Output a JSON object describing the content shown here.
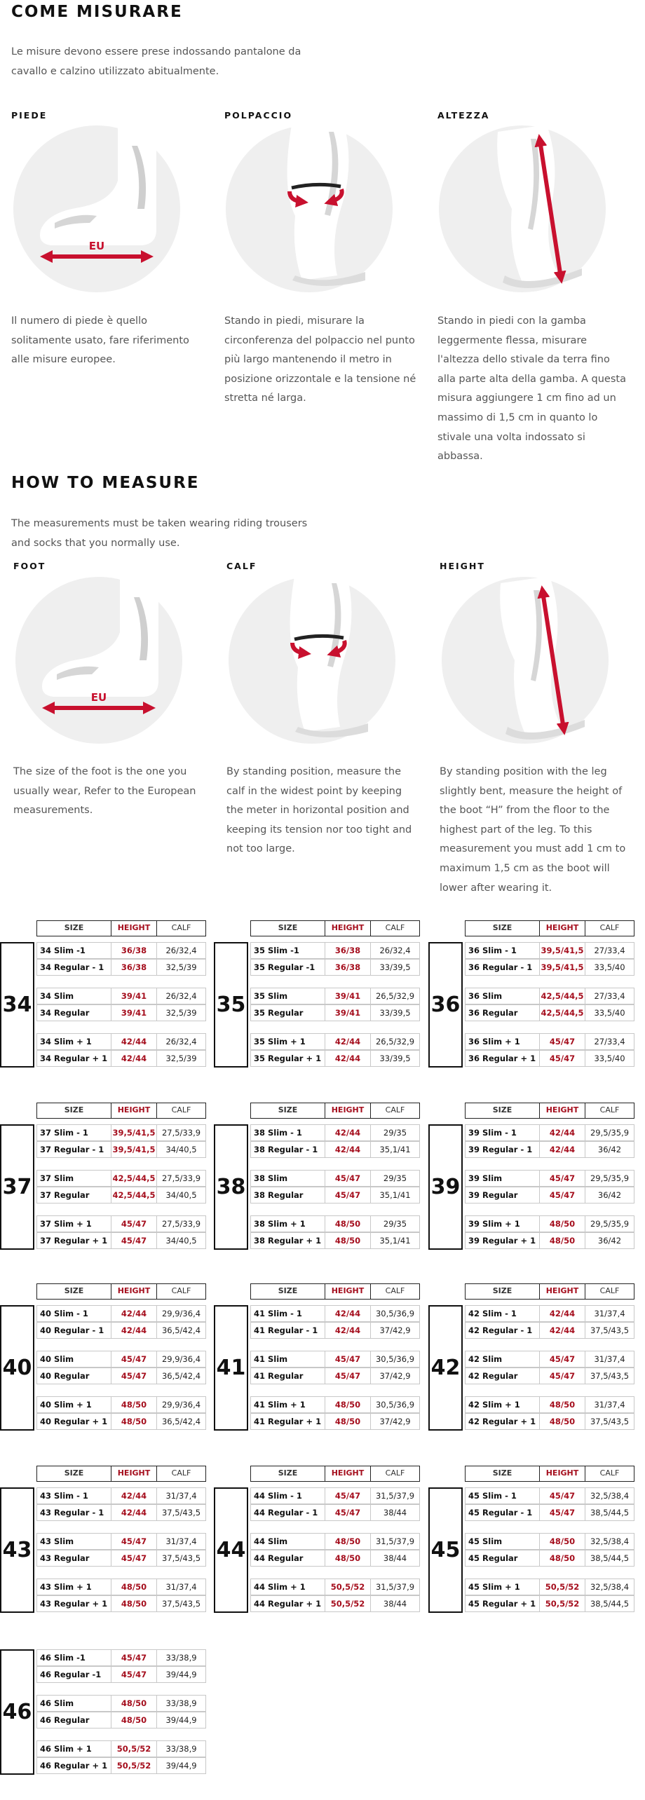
{
  "sections": [
    {
      "title": "COME MISURARE",
      "intro": "Le misure devono essere prese indossando pantalone da cavallo e calzino utilizzato abitualmente.",
      "foot_label": "EU",
      "columns": [
        {
          "label": "PIEDE",
          "text": "Il numero di piede è quello solitamente usato, fare riferimento alle misure europee."
        },
        {
          "label": "POLPACCIO",
          "text": "Stando in piedi, misurare la circonferenza del polpaccio nel punto più largo mantenendo il metro in posizione orizzontale e la tensione né stretta né larga."
        },
        {
          "label": "ALTEZZA",
          "text": "Stando in piedi con la gamba leggermente flessa, misurare l'altezza dello stivale da terra fino alla parte alta della gamba. A questa misura aggiungere 1 cm fino ad un massimo di 1,5 cm in quanto lo stivale una volta indossato si abbassa."
        }
      ]
    },
    {
      "title": "HOW TO MEASURE",
      "intro": "The measurements must be taken wearing riding trousers and socks that you normally use.",
      "foot_label": "EU",
      "columns": [
        {
          "label": "FOOT",
          "text": "The size of the foot is the one you usually wear, Refer to the European measurements."
        },
        {
          "label": "CALF",
          "text": "By standing position, measure the calf in the widest point by keeping the meter in horizontal position and keeping its tension nor too tight and not too large."
        },
        {
          "label": "HEIGHT",
          "text": "By standing position with the leg slightly bent, measure the height of the boot “H” from the floor to the highest part of the leg. To this measurement you must add 1 cm to maximum 1,5 cm as the boot will lower after wearing it."
        }
      ]
    }
  ],
  "table_header": [
    "SIZE",
    "HEIGHT",
    "CALF"
  ],
  "tables": [
    {
      "size": "34",
      "header": true,
      "rows": [
        [
          "34 Slim -1",
          "36/38",
          "26/32,4"
        ],
        [
          "34 Regular - 1",
          "36/38",
          "32,5/39"
        ],
        [
          "34 Slim",
          "39/41",
          "26/32,4"
        ],
        [
          "34 Regular",
          "39/41",
          "32,5/39"
        ],
        [
          "34 Slim + 1",
          "42/44",
          "26/32,4"
        ],
        [
          "34 Regular + 1",
          "42/44",
          "32,5/39"
        ]
      ]
    },
    {
      "size": "35",
      "header": true,
      "rows": [
        [
          "35 Slim -1",
          "36/38",
          "26/32,4"
        ],
        [
          "35 Regular -1",
          "36/38",
          "33/39,5"
        ],
        [
          "35 Slim",
          "39/41",
          "26,5/32,9"
        ],
        [
          "35 Regular",
          "39/41",
          "33/39,5"
        ],
        [
          "35 Slim + 1",
          "42/44",
          "26,5/32,9"
        ],
        [
          "35 Regular + 1",
          "42/44",
          "33/39,5"
        ]
      ]
    },
    {
      "size": "36",
      "header": true,
      "rows": [
        [
          "36 Slim - 1",
          "39,5/41,5",
          "27/33,4"
        ],
        [
          "36 Regular - 1",
          "39,5/41,5",
          "33,5/40"
        ],
        [
          "36 Slim",
          "42,5/44,5",
          "27/33,4"
        ],
        [
          "36 Regular",
          "42,5/44,5",
          "33,5/40"
        ],
        [
          "36 Slim + 1",
          "45/47",
          "27/33,4"
        ],
        [
          "36 Regular + 1",
          "45/47",
          "33,5/40"
        ]
      ]
    },
    {
      "size": "37",
      "header": true,
      "rows": [
        [
          "37 Slim - 1",
          "39,5/41,5",
          "27,5/33,9"
        ],
        [
          "37 Regular - 1",
          "39,5/41,5",
          "34/40,5"
        ],
        [
          "37 Slim",
          "42,5/44,5",
          "27,5/33,9"
        ],
        [
          "37 Regular",
          "42,5/44,5",
          "34/40,5"
        ],
        [
          "37 Slim + 1",
          "45/47",
          "27,5/33,9"
        ],
        [
          "37 Regular + 1",
          "45/47",
          "34/40,5"
        ]
      ]
    },
    {
      "size": "38",
      "header": true,
      "rows": [
        [
          "38 Slim - 1",
          "42/44",
          "29/35"
        ],
        [
          "38 Regular - 1",
          "42/44",
          "35,1/41"
        ],
        [
          "38 Slim",
          "45/47",
          "29/35"
        ],
        [
          "38 Regular",
          "45/47",
          "35,1/41"
        ],
        [
          "38 Slim + 1",
          "48/50",
          "29/35"
        ],
        [
          "38 Regular + 1",
          "48/50",
          "35,1/41"
        ]
      ]
    },
    {
      "size": "39",
      "header": true,
      "rows": [
        [
          "39 Slim - 1",
          "42/44",
          "29,5/35,9"
        ],
        [
          "39 Regular - 1",
          "42/44",
          "36/42"
        ],
        [
          "39 Slim",
          "45/47",
          "29,5/35,9"
        ],
        [
          "39 Regular",
          "45/47",
          "36/42"
        ],
        [
          "39 Slim + 1",
          "48/50",
          "29,5/35,9"
        ],
        [
          "39 Regular + 1",
          "48/50",
          "36/42"
        ]
      ]
    },
    {
      "size": "40",
      "header": true,
      "rows": [
        [
          "40 Slim - 1",
          "42/44",
          "29,9/36,4"
        ],
        [
          "40 Regular - 1",
          "42/44",
          "36,5/42,4"
        ],
        [
          "40 Slim",
          "45/47",
          "29,9/36,4"
        ],
        [
          "40 Regular",
          "45/47",
          "36,5/42,4"
        ],
        [
          "40 Slim + 1",
          "48/50",
          "29,9/36,4"
        ],
        [
          "40 Regular + 1",
          "48/50",
          "36,5/42,4"
        ]
      ]
    },
    {
      "size": "41",
      "header": true,
      "rows": [
        [
          "41 Slim - 1",
          "42/44",
          "30,5/36,9"
        ],
        [
          "41 Regular - 1",
          "42/44",
          "37/42,9"
        ],
        [
          "41 Slim",
          "45/47",
          "30,5/36,9"
        ],
        [
          "41 Regular",
          "45/47",
          "37/42,9"
        ],
        [
          "41 Slim + 1",
          "48/50",
          "30,5/36,9"
        ],
        [
          "41 Regular + 1",
          "48/50",
          "37/42,9"
        ]
      ]
    },
    {
      "size": "42",
      "header": true,
      "rows": [
        [
          "42 Slim - 1",
          "42/44",
          "31/37,4"
        ],
        [
          "42 Regular - 1",
          "42/44",
          "37,5/43,5"
        ],
        [
          "42 Slim",
          "45/47",
          "31/37,4"
        ],
        [
          "42 Regular",
          "45/47",
          "37,5/43,5"
        ],
        [
          "42 Slim + 1",
          "48/50",
          "31/37,4"
        ],
        [
          "42 Regular + 1",
          "48/50",
          "37,5/43,5"
        ]
      ]
    },
    {
      "size": "43",
      "header": true,
      "rows": [
        [
          "43 Slim - 1",
          "42/44",
          "31/37,4"
        ],
        [
          "43 Regular - 1",
          "42/44",
          "37,5/43,5"
        ],
        [
          "43 Slim",
          "45/47",
          "31/37,4"
        ],
        [
          "43 Regular",
          "45/47",
          "37,5/43,5"
        ],
        [
          "43 Slim + 1",
          "48/50",
          "31/37,4"
        ],
        [
          "43 Regular + 1",
          "48/50",
          "37,5/43,5"
        ]
      ]
    },
    {
      "size": "44",
      "header": true,
      "rows": [
        [
          "44 Slim - 1",
          "45/47",
          "31,5/37,9"
        ],
        [
          "44 Regular - 1",
          "45/47",
          "38/44"
        ],
        [
          "44 Slim",
          "48/50",
          "31,5/37,9"
        ],
        [
          "44 Regular",
          "48/50",
          "38/44"
        ],
        [
          "44 Slim + 1",
          "50,5/52",
          "31,5/37,9"
        ],
        [
          "44 Regular + 1",
          "50,5/52",
          "38/44"
        ]
      ]
    },
    {
      "size": "45",
      "header": true,
      "rows": [
        [
          "45 Slim - 1",
          "45/47",
          "32,5/38,4"
        ],
        [
          "45 Regular - 1",
          "45/47",
          "38,5/44,5"
        ],
        [
          "45 Slim",
          "48/50",
          "32,5/38,4"
        ],
        [
          "45 Regular",
          "48/50",
          "38,5/44,5"
        ],
        [
          "45 Slim + 1",
          "50,5/52",
          "32,5/38,4"
        ],
        [
          "45 Regular + 1",
          "50,5/52",
          "38,5/44,5"
        ]
      ]
    },
    {
      "size": "46",
      "header": false,
      "rows": [
        [
          "46 Slim -1",
          "45/47",
          "33/38,9"
        ],
        [
          "46 Regular -1",
          "45/47",
          "39/44,9"
        ],
        [
          "46 Slim",
          "48/50",
          "33/38,9"
        ],
        [
          "46 Regular",
          "48/50",
          "39/44,9"
        ],
        [
          "46 Slim + 1",
          "50,5/52",
          "33/38,9"
        ],
        [
          "46 Regular + 1",
          "50,5/52",
          "39/44,9"
        ]
      ]
    }
  ]
}
